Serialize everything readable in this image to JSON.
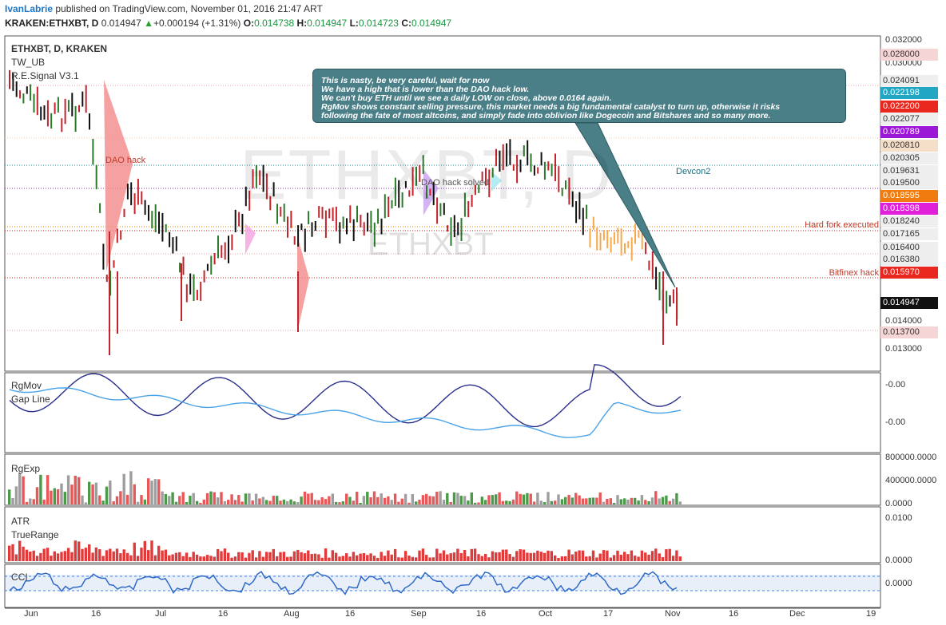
{
  "header": {
    "author": "IvanLabrie",
    "published": " published on TradingView.com, November 01, 2016 21:47 ART",
    "symbol": "KRAKEN:ETHXBT, D",
    "last": "0.014947",
    "change": "+0.000194 (+1.31%)",
    "o_label": "O:",
    "o": "0.014738",
    "h_label": "H:",
    "h": "0.014947",
    "l_label": "L:",
    "l": "0.014723",
    "c_label": "C:",
    "c": "0.014947"
  },
  "legend": {
    "main": "ETHXBT, D, KRAKEN",
    "study1": "TW_UB",
    "study2": "R.E.Signal V3.1"
  },
  "watermark": {
    "big": "ETHXBT, D",
    "small": "ETHXBT"
  },
  "note": {
    "line1": "This is nasty, be very careful, wait for now",
    "line2": "We have a high that is lower than the DAO hack low.",
    "line3": "We can't buy ETH until we see a daily LOW on close, above 0.0164 again.",
    "line4": "RgMov shows constant selling pressure, this market needs a big fundamental catalyst to turn up, otherwise it risks",
    "line5": "following the fate of most altcoins, and simply fade into oblivion like Dogecoin and Bitshares and so many more."
  },
  "annotations": {
    "dao_hack": "DAO hack",
    "dao_solved": "DAO hack solved",
    "devcon": "Devcon2",
    "hard_fork": "Hard fork executed",
    "bitfinex": "Bitfinex hack"
  },
  "price_axis": {
    "ticks": [
      "0.032000",
      "0.030000",
      "0.014000",
      "0.013000"
    ],
    "labels": [
      {
        "text": "0.028000",
        "bg": "#f5d5d5",
        "fg": "#333333"
      },
      {
        "text": "0.024091",
        "bg": "#eeeeee",
        "fg": "#333333"
      },
      {
        "text": "0.022198",
        "bg": "#21a7c4",
        "fg": "#ffffff"
      },
      {
        "text": "0.022200",
        "bg": "#e8281e",
        "fg": "#ffffff"
      },
      {
        "text": "0.022077",
        "bg": "#eeeeee",
        "fg": "#333333"
      },
      {
        "text": "0.020789",
        "bg": "#9b19d6",
        "fg": "#ffffff"
      },
      {
        "text": "0.020810",
        "bg": "#f5dfc8",
        "fg": "#333333"
      },
      {
        "text": "0.020305",
        "bg": "#eeeeee",
        "fg": "#333333"
      },
      {
        "text": "0.019631",
        "bg": "#eeeeee",
        "fg": "#333333"
      },
      {
        "text": "0.019500",
        "bg": "#eeeeee",
        "fg": "#333333"
      },
      {
        "text": "0.018595",
        "bg": "#f07c10",
        "fg": "#ffffff"
      },
      {
        "text": "0.018398",
        "bg": "#e020d8",
        "fg": "#ffffff"
      },
      {
        "text": "0.018240",
        "bg": "#eeeeee",
        "fg": "#333333"
      },
      {
        "text": "0.017165",
        "bg": "#eeeeee",
        "fg": "#333333"
      },
      {
        "text": "0.016400",
        "bg": "#eeeeee",
        "fg": "#333333"
      },
      {
        "text": "0.016380",
        "bg": "#eeeeee",
        "fg": "#333333"
      },
      {
        "text": "0.015970",
        "bg": "#e8281e",
        "fg": "#ffffff"
      },
      {
        "text": "0.014947",
        "bg": "#111111",
        "fg": "#ffffff"
      },
      {
        "text": "0.013700",
        "bg": "#f5d5d5",
        "fg": "#333333"
      }
    ]
  },
  "panels": {
    "rgmov": {
      "title": "RgMov",
      "sub": "Gap Line",
      "ticks": [
        "-0.00",
        "-0.00"
      ]
    },
    "rgexp": {
      "title": "RgExp",
      "ticks": [
        "800000.0000",
        "400000.0000",
        "0.0000"
      ]
    },
    "atr": {
      "title": "ATR",
      "sub": "TrueRange",
      "ticks": [
        "0.0100",
        "0.0000"
      ]
    },
    "cci": {
      "title": "CCI",
      "ticks": [
        "0.0000"
      ]
    }
  },
  "date_axis": [
    "Jun",
    "16",
    "Jul",
    "16",
    "Aug",
    "16",
    "Sep",
    "16",
    "Oct",
    "17",
    "Nov",
    "16",
    "Dec",
    "19"
  ],
  "colors": {
    "up": "#2a7a2a",
    "down": "#c3232a",
    "neutral": "#111111",
    "orange": "#f6a94a",
    "gray": "#9e9e9e"
  }
}
